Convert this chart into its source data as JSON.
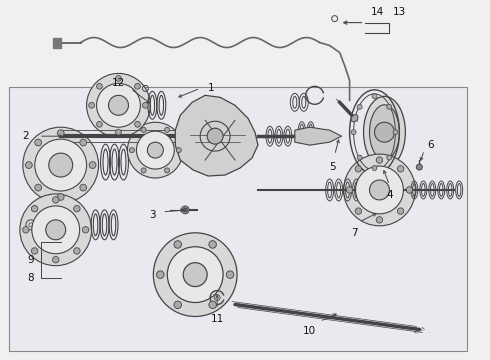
{
  "bg_color": "#f0f0f0",
  "box_facecolor": "#e8eaf0",
  "box_edgecolor": "#888888",
  "line_color": "#444444",
  "figsize": [
    4.9,
    3.6
  ],
  "dpi": 100,
  "label_fontsize": 7.5,
  "label_color": "#111111"
}
